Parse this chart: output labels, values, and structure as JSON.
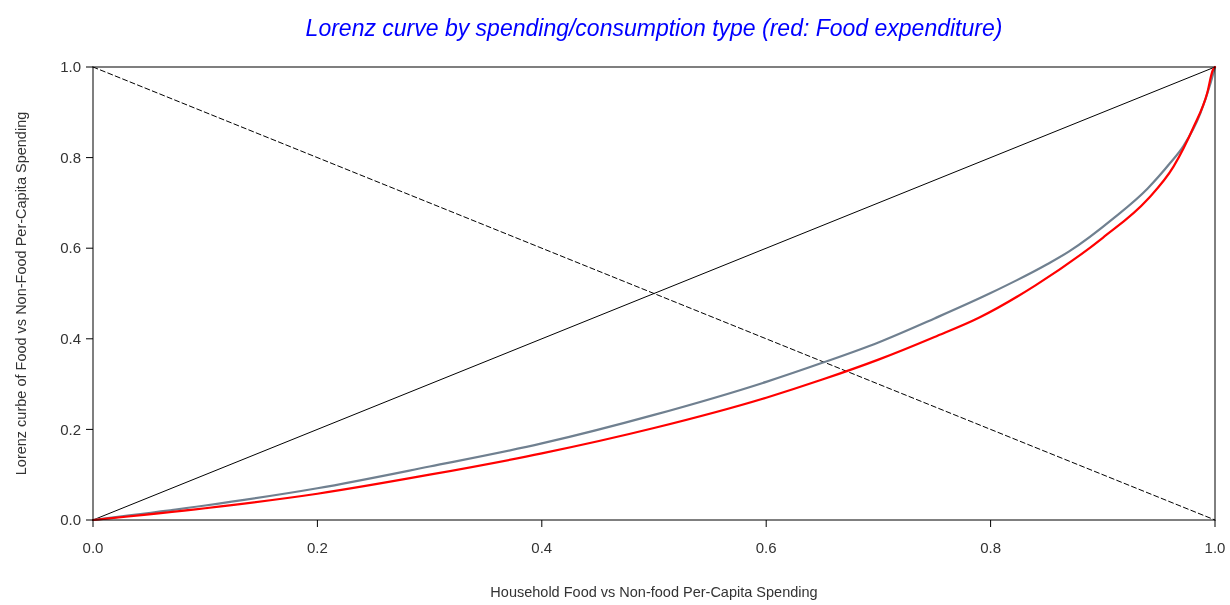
{
  "chart_data": {
    "type": "line",
    "title": "Lorenz curve by spending/consumption type (red: Food expenditure)",
    "xlabel": "Household Food vs Non-food Per-Capita Spending",
    "ylabel": "Lorenz curbe of Food vs Non-Food Per-Capita Spending",
    "xlim": [
      0,
      1
    ],
    "ylim": [
      0,
      1
    ],
    "xticks": [
      {
        "value": 0,
        "label": "0.0"
      },
      0.2,
      0.4,
      0.6,
      0.8,
      {
        "value": 1,
        "label": "1.0"
      }
    ],
    "yticks": [
      {
        "value": 0,
        "label": "0.0"
      },
      0.2,
      0.4,
      0.6,
      0.8,
      {
        "value": 1,
        "label": "1.0"
      }
    ],
    "series": [
      {
        "color": "#000000",
        "x": [
          0,
          1
        ],
        "values": [
          0,
          1
        ]
      },
      {
        "color": "#000000",
        "x": [
          0,
          1
        ],
        "values": [
          1,
          0
        ],
        "line_style": "dashed"
      },
      {
        "color": "#708090",
        "x": [
          0,
          0.1,
          0.2,
          0.3,
          0.4,
          0.5,
          0.6,
          0.65,
          0.7,
          0.75,
          0.8,
          0.85,
          0.87,
          0.91,
          0.94,
          0.96,
          0.972,
          0.987,
          0.996,
          1.0
        ],
        "values": [
          0,
          0.032,
          0.07,
          0.118,
          0.169,
          0.232,
          0.305,
          0.347,
          0.392,
          0.445,
          0.501,
          0.564,
          0.593,
          0.667,
          0.732,
          0.788,
          0.826,
          0.898,
          0.964,
          1.0
        ]
      },
      {
        "color": "#ff0000",
        "x": [
          0,
          0.1,
          0.2,
          0.3,
          0.4,
          0.5,
          0.6,
          0.65,
          0.7,
          0.75,
          0.79,
          0.84,
          0.9,
          0.94,
          0.963,
          0.981,
          0.993,
          0.998,
          1.0
        ],
        "values": [
          0,
          0.026,
          0.058,
          0.1,
          0.147,
          0.203,
          0.27,
          0.31,
          0.354,
          0.404,
          0.447,
          0.518,
          0.623,
          0.708,
          0.78,
          0.868,
          0.942,
          0.993,
          1.0
        ]
      }
    ]
  }
}
